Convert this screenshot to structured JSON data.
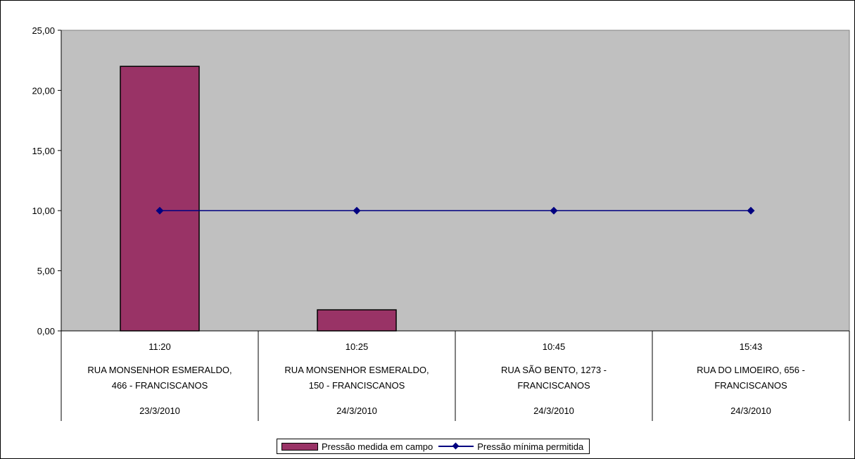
{
  "chart_data": {
    "type": "bar",
    "categories": [
      {
        "time": "11:20",
        "address": [
          "RUA MONSENHOR ESMERALDO,",
          "466 - FRANCISCANOS"
        ],
        "date": "23/3/2010"
      },
      {
        "time": "10:25",
        "address": [
          "RUA MONSENHOR ESMERALDO,",
          "150 - FRANCISCANOS"
        ],
        "date": "24/3/2010"
      },
      {
        "time": "10:45",
        "address": [
          "RUA SÃO BENTO, 1273 -",
          "FRANCISCANOS"
        ],
        "date": "24/3/2010"
      },
      {
        "time": "15:43",
        "address": [
          "RUA DO LIMOEIRO, 656 -",
          "FRANCISCANOS"
        ],
        "date": "24/3/2010"
      }
    ],
    "series": [
      {
        "name": "Pressão medida em campo",
        "type": "bar",
        "color": "#993366",
        "values": [
          22.0,
          1.75,
          0,
          0
        ]
      },
      {
        "name": "Pressão mínima permitida",
        "type": "line",
        "color": "#000080",
        "marker": "diamond",
        "values": [
          10.0,
          10.0,
          10.0,
          10.0
        ]
      }
    ],
    "yticks": [
      "0,00",
      "5,00",
      "10,00",
      "15,00",
      "20,00",
      "25,00"
    ],
    "ylim": [
      0,
      25
    ],
    "plot_background": "#c0c0c0",
    "grid": false,
    "legend_position": "bottom"
  }
}
